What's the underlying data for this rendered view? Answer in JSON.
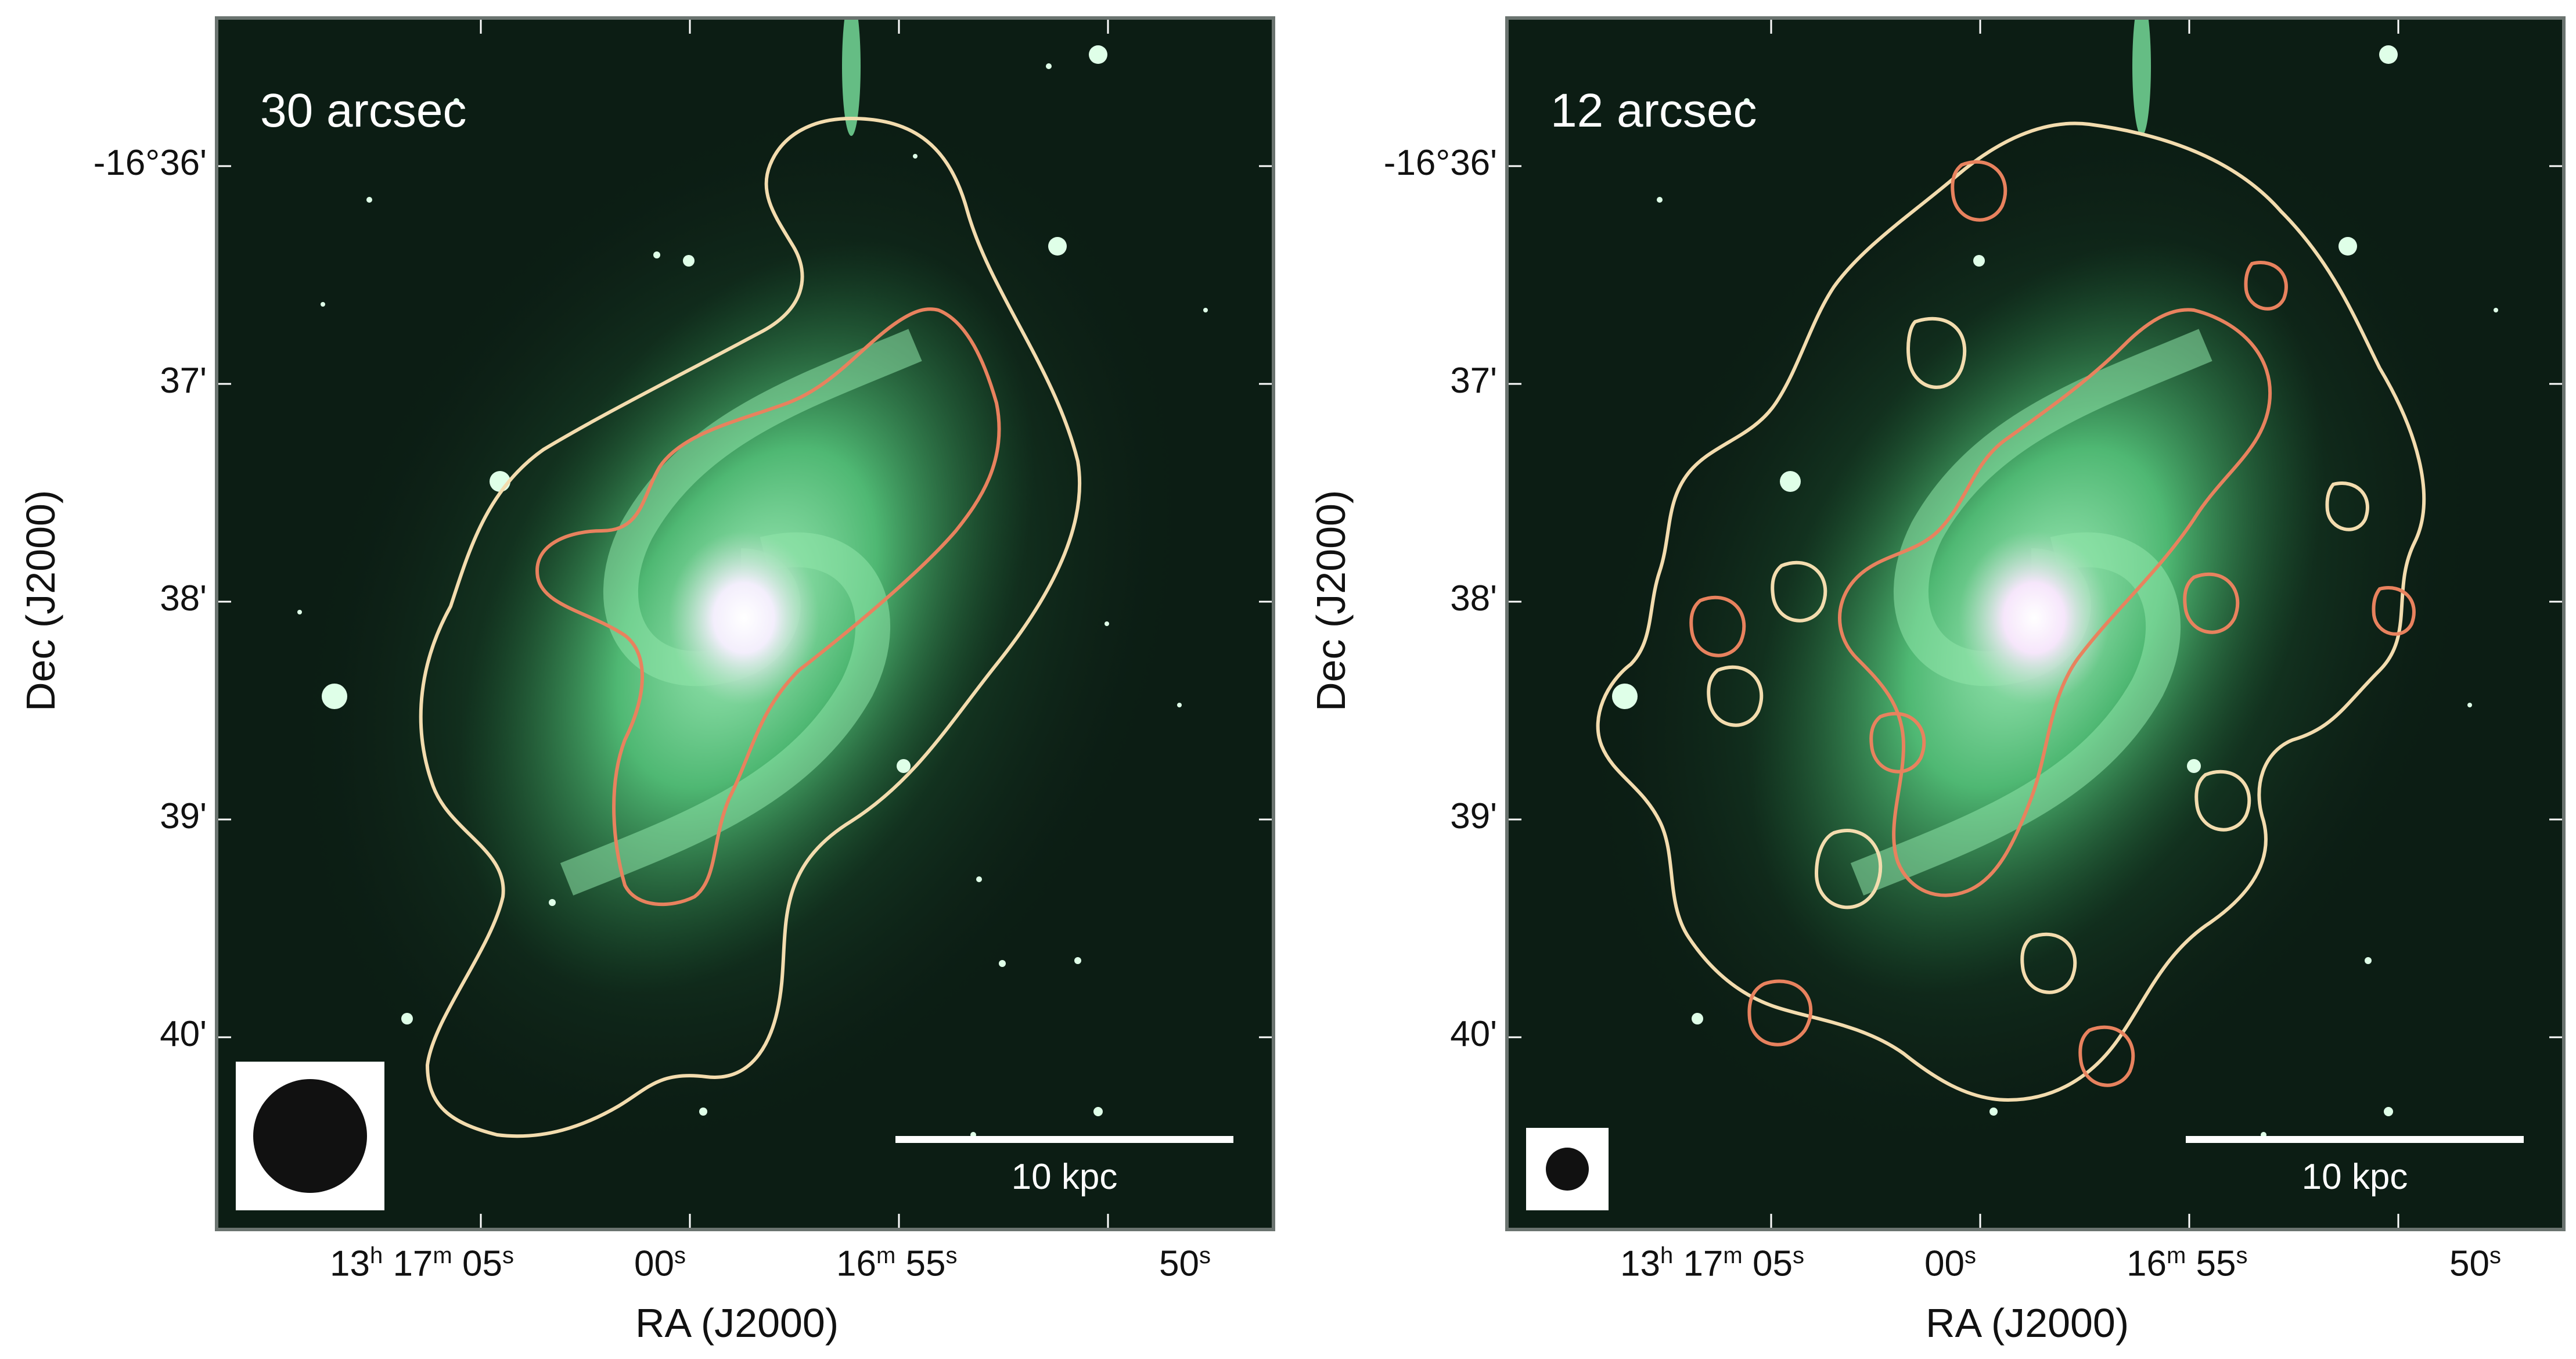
{
  "panels": [
    {
      "title": "30 arcsec",
      "scalebar_label": "10 kpc",
      "y_axis_label": "Dec (J2000)",
      "x_axis_label": "RA (J2000)"
    },
    {
      "title": "12 arcsec",
      "scalebar_label": "10 kpc",
      "y_axis_label": "Dec (J2000)",
      "x_axis_label": "RA (J2000)"
    }
  ],
  "dec_ticks": [
    "-16°36'",
    "37'",
    "38'",
    "39'",
    "40'"
  ],
  "ra_ticks": {
    "hours": "13",
    "h_mark": "h",
    "min17": "17",
    "m_mark": "m",
    "sec05": "05",
    "sec00": "00",
    "min16": "16",
    "sec55": "55",
    "sec50": "50",
    "s_mark": "s"
  },
  "colors": {
    "contour_outer": "#f3dcae",
    "contour_inner": "#e8825e",
    "sky": "#0c1d14",
    "galaxy": "#5fd08a",
    "frame": "#6b7470"
  }
}
